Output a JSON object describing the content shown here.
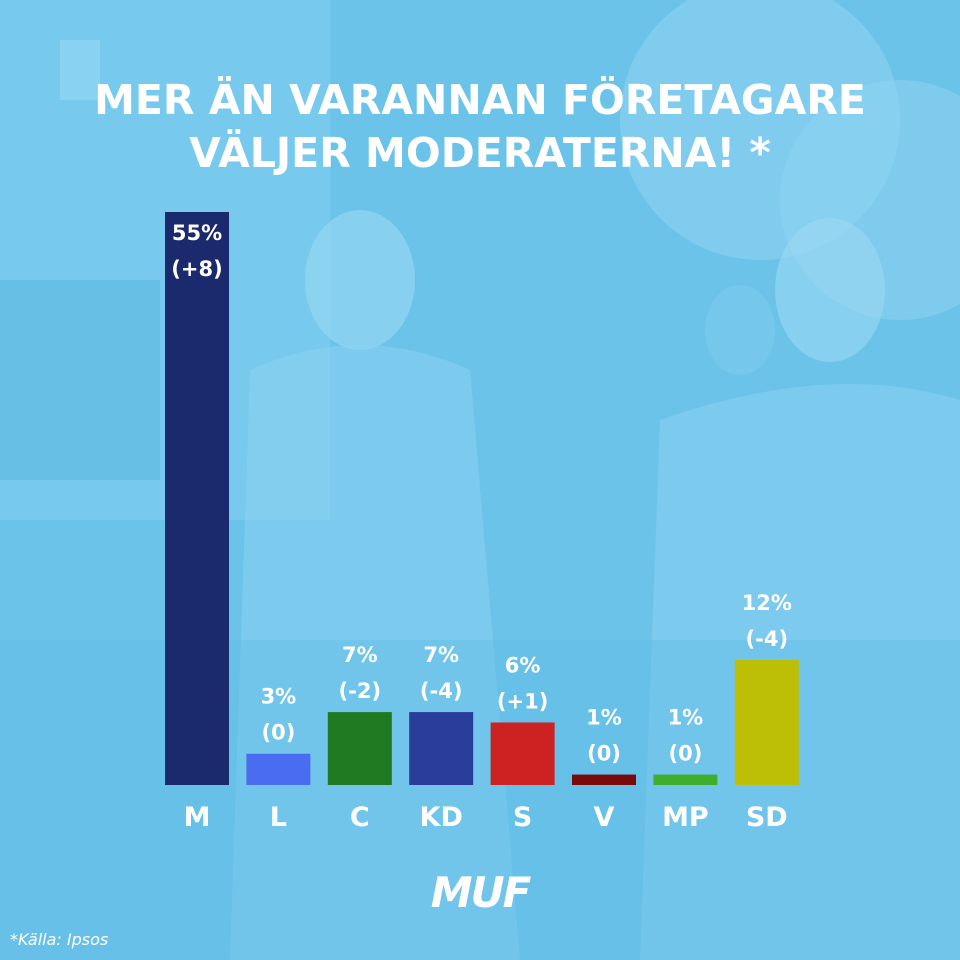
{
  "title_lines": [
    "MER ÄN VARANNAN FÖRETAGARE",
    "VÄLJER MODERATERNA! *"
  ],
  "logo_text": "MUF",
  "source_note": "*Källa: Ipsos",
  "chart_data": {
    "type": "bar",
    "title": "MER ÄN VARANNAN FÖRETAGARE VÄLJER MODERATERNA! *",
    "xlabel": "",
    "ylabel": "",
    "ylim": [
      0,
      55
    ],
    "grid": false,
    "categories": [
      "M",
      "L",
      "C",
      "KD",
      "S",
      "V",
      "MP",
      "SD"
    ],
    "values": [
      55,
      3,
      7,
      7,
      6,
      1,
      1,
      12
    ],
    "value_labels": [
      "55%",
      "3%",
      "7%",
      "7%",
      "6%",
      "1%",
      "1%",
      "12%"
    ],
    "change_labels": [
      "(+8)",
      "(0)",
      "(-2)",
      "(-4)",
      "(+1)",
      "(0)",
      "(0)",
      "(-4)"
    ],
    "colors": [
      "#1a2a6c",
      "#4a6cf0",
      "#1f7a22",
      "#2a3d9a",
      "#cc2222",
      "#7a0a0a",
      "#3fae2a",
      "#bcbf05"
    ]
  }
}
